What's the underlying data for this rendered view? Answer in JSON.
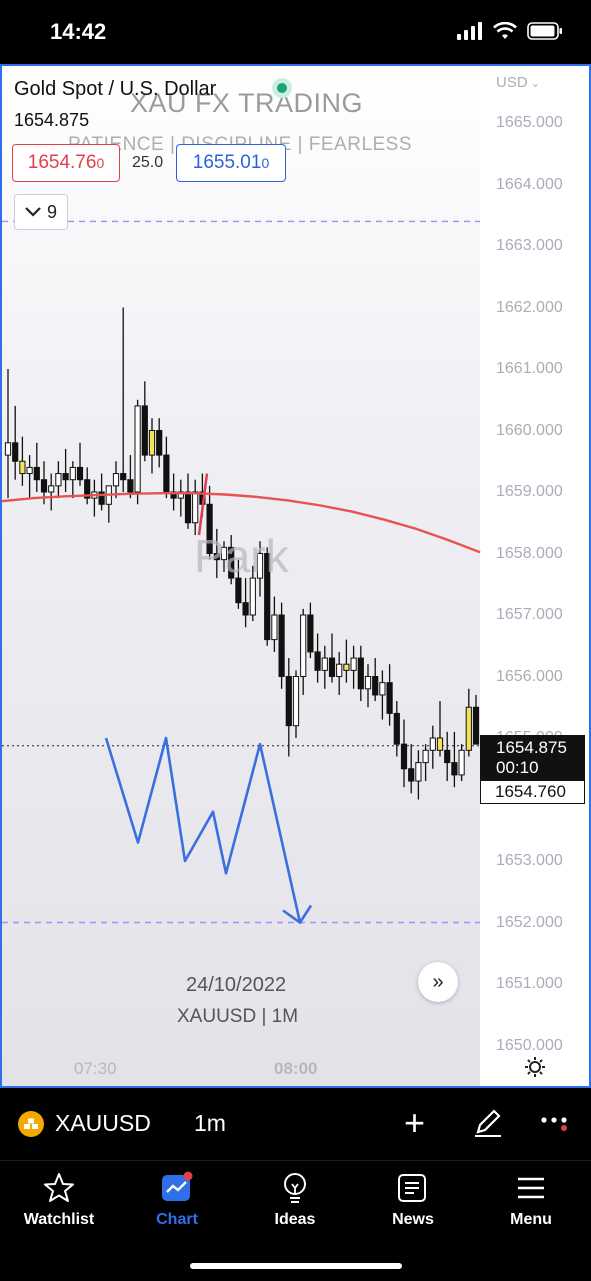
{
  "status_bar": {
    "time": "14:42"
  },
  "chart": {
    "symbol_title": "Gold Spot / U.S. Dollar",
    "last_price": "1654.875",
    "currency": "USD",
    "watermark": {
      "title": "XAU FX TRADING",
      "subtitle": "PATIENCE  |  DISCIPLINE  |  FEARLESS"
    },
    "bid_sell": "1654.76",
    "bid_sell_small": "0",
    "spread": "25.0",
    "bid_buy": "1655.01",
    "bid_buy_small": "0",
    "indicator_count": "9",
    "price_axis": [
      "1665.000",
      "1664.000",
      "1663.000",
      "1662.000",
      "1661.000",
      "1660.000",
      "1659.000",
      "1658.000",
      "1657.000",
      "1656.000",
      "1655.000",
      "1654.000",
      "1653.000",
      "1652.000",
      "1651.000",
      "1650.000"
    ],
    "time_axis": [
      "07:30",
      "08:00"
    ],
    "date_label": "24/10/2022",
    "symbol_timeframe": "XAUUSD | 1M",
    "current_price_tag": "1654.875",
    "countdown": "00:10",
    "bid_price_tag": "1654.760",
    "session_watermark": "Park",
    "colors": {
      "moving_average": "#e8534f",
      "drawing": "#3a6fe0",
      "accent": "#2f6fea",
      "sell": "#e0424a",
      "buy": "#2d62d9"
    }
  },
  "chart_data": {
    "type": "candlestick",
    "title": "Gold Spot / U.S. Dollar",
    "ylim": [
      1650,
      1665.5
    ],
    "ohlc": [
      [
        1659.6,
        1661.0,
        1658.9,
        1659.8
      ],
      [
        1659.8,
        1660.4,
        1659.2,
        1659.5
      ],
      [
        1659.5,
        1659.9,
        1659.1,
        1659.3
      ],
      [
        1659.3,
        1659.6,
        1658.9,
        1659.4
      ],
      [
        1659.4,
        1659.8,
        1659.0,
        1659.2
      ],
      [
        1659.2,
        1659.5,
        1658.8,
        1659.0
      ],
      [
        1659.0,
        1659.3,
        1658.7,
        1659.1
      ],
      [
        1659.1,
        1659.5,
        1658.9,
        1659.3
      ],
      [
        1659.3,
        1659.7,
        1659.0,
        1659.2
      ],
      [
        1659.2,
        1659.5,
        1658.9,
        1659.4
      ],
      [
        1659.4,
        1659.8,
        1659.1,
        1659.2
      ],
      [
        1659.2,
        1659.4,
        1658.8,
        1658.9
      ],
      [
        1658.9,
        1659.2,
        1658.6,
        1659.0
      ],
      [
        1659.0,
        1659.3,
        1658.7,
        1658.8
      ],
      [
        1658.8,
        1659.1,
        1658.5,
        1659.1
      ],
      [
        1659.1,
        1659.5,
        1658.9,
        1659.3
      ],
      [
        1659.3,
        1662.0,
        1659.0,
        1659.2
      ],
      [
        1659.2,
        1659.6,
        1658.9,
        1659.0
      ],
      [
        1659.0,
        1660.5,
        1658.8,
        1660.4
      ],
      [
        1660.4,
        1660.8,
        1659.5,
        1659.6
      ],
      [
        1659.6,
        1660.2,
        1659.3,
        1660.0
      ],
      [
        1660.0,
        1660.2,
        1659.4,
        1659.6
      ],
      [
        1659.6,
        1659.9,
        1658.9,
        1659.0
      ],
      [
        1659.0,
        1659.3,
        1658.7,
        1658.9
      ],
      [
        1658.9,
        1659.2,
        1658.6,
        1659.0
      ],
      [
        1659.0,
        1659.3,
        1658.4,
        1658.5
      ],
      [
        1658.5,
        1659.2,
        1658.3,
        1659.0
      ],
      [
        1659.0,
        1659.3,
        1658.6,
        1658.8
      ],
      [
        1658.8,
        1659.1,
        1657.9,
        1658.0
      ],
      [
        1658.0,
        1658.4,
        1657.6,
        1657.9
      ],
      [
        1657.9,
        1658.2,
        1657.7,
        1658.1
      ],
      [
        1658.1,
        1658.3,
        1657.5,
        1657.6
      ],
      [
        1657.6,
        1657.9,
        1657.1,
        1657.2
      ],
      [
        1657.2,
        1657.6,
        1656.8,
        1657.0
      ],
      [
        1657.0,
        1657.8,
        1656.9,
        1657.6
      ],
      [
        1657.6,
        1658.2,
        1657.3,
        1658.0
      ],
      [
        1658.0,
        1658.1,
        1656.5,
        1656.6
      ],
      [
        1656.6,
        1657.3,
        1656.4,
        1657.0
      ],
      [
        1657.0,
        1657.2,
        1655.8,
        1656.0
      ],
      [
        1656.0,
        1656.3,
        1654.7,
        1655.2
      ],
      [
        1655.2,
        1656.1,
        1655.0,
        1656.0
      ],
      [
        1656.0,
        1657.1,
        1655.7,
        1657.0
      ],
      [
        1657.0,
        1657.2,
        1656.3,
        1656.4
      ],
      [
        1656.4,
        1656.7,
        1655.9,
        1656.1
      ],
      [
        1656.1,
        1656.5,
        1655.8,
        1656.3
      ],
      [
        1656.3,
        1656.7,
        1655.9,
        1656.0
      ],
      [
        1656.0,
        1656.4,
        1655.7,
        1656.2
      ],
      [
        1656.2,
        1656.6,
        1655.9,
        1656.1
      ],
      [
        1656.1,
        1656.5,
        1655.8,
        1656.3
      ],
      [
        1656.3,
        1656.5,
        1655.6,
        1655.8
      ],
      [
        1655.8,
        1656.2,
        1655.5,
        1656.0
      ],
      [
        1656.0,
        1656.3,
        1655.6,
        1655.7
      ],
      [
        1655.7,
        1656.1,
        1655.3,
        1655.9
      ],
      [
        1655.9,
        1656.2,
        1655.2,
        1655.4
      ],
      [
        1655.4,
        1655.6,
        1654.7,
        1654.9
      ],
      [
        1654.9,
        1655.3,
        1654.2,
        1654.5
      ],
      [
        1654.5,
        1654.9,
        1654.1,
        1654.3
      ],
      [
        1654.3,
        1654.8,
        1654.0,
        1654.6
      ],
      [
        1654.6,
        1654.9,
        1654.3,
        1654.8
      ],
      [
        1654.8,
        1655.2,
        1654.5,
        1655.0
      ],
      [
        1655.0,
        1655.6,
        1654.7,
        1654.8
      ],
      [
        1654.8,
        1655.1,
        1654.3,
        1654.6
      ],
      [
        1654.6,
        1655.1,
        1654.2,
        1654.4
      ],
      [
        1654.4,
        1654.9,
        1654.3,
        1654.8
      ],
      [
        1654.8,
        1655.8,
        1654.7,
        1655.5
      ],
      [
        1655.5,
        1655.7,
        1654.9,
        1654.9
      ]
    ],
    "moving_average": [
      1658.85,
      1658.9,
      1658.93,
      1658.95,
      1658.97,
      1658.98,
      1658.98,
      1658.96,
      1658.92,
      1658.86,
      1658.78,
      1658.68,
      1658.55,
      1658.4,
      1658.22,
      1658.02
    ],
    "horizontal_lines": [
      1663.4,
      1652.0
    ],
    "current_price_line": 1654.875
  }
}
